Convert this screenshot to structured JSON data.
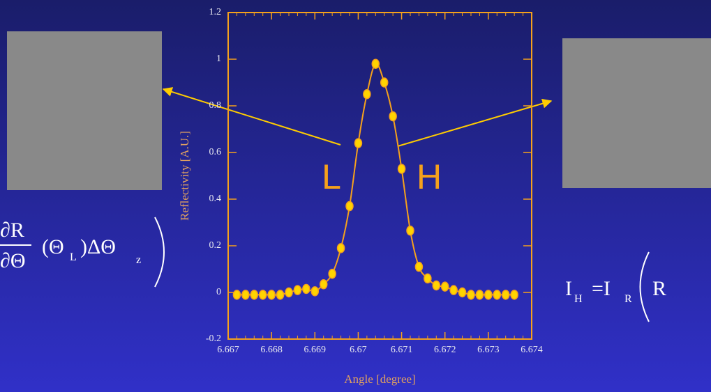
{
  "chart_data": {
    "type": "line",
    "x": [
      6.6672,
      6.6674,
      6.6676,
      6.6678,
      6.668,
      6.6682,
      6.6684,
      6.6686,
      6.6688,
      6.669,
      6.6692,
      6.6694,
      6.6696,
      6.6698,
      6.67,
      6.6702,
      6.6704,
      6.6706,
      6.6708,
      6.671,
      6.6712,
      6.6714,
      6.6716,
      6.6718,
      6.672,
      6.6722,
      6.6724,
      6.6726,
      6.6728,
      6.673,
      6.6732,
      6.6734,
      6.6736
    ],
    "series": [
      {
        "color": "#f5a11c",
        "marker_color": "#ffd400",
        "values": [
          -0.01,
          -0.01,
          -0.01,
          -0.01,
          -0.01,
          -0.01,
          0,
          0.01,
          0.015,
          0.005,
          0.035,
          0.08,
          0.19,
          0.37,
          0.64,
          0.85,
          0.98,
          0.9,
          0.755,
          0.53,
          0.265,
          0.11,
          0.06,
          0.03,
          0.025,
          0.01,
          0,
          -0.01,
          -0.01,
          -0.01,
          -0.01,
          -0.01,
          -0.01
        ]
      }
    ],
    "xlim": [
      6.667,
      6.674
    ],
    "xticks": [
      6.667,
      6.668,
      6.669,
      6.67,
      6.671,
      6.672,
      6.673,
      6.674
    ],
    "ylim": [
      -0.2,
      1.2
    ],
    "yticks": [
      -0.2,
      0,
      0.2,
      0.4,
      0.6,
      0.8,
      1,
      1.2
    ],
    "xlabel": "Angle [degree]",
    "ylabel": "Reflectivity [A.U.]",
    "annotations": [
      "L",
      "H"
    ]
  },
  "equations": {
    "left": {
      "numerator": "∂R",
      "denominator": "∂Θ",
      "paren": "(Θ",
      "sub_l": "L",
      "rest": ")ΔΘ",
      "sub_z": "z"
    },
    "right": {
      "i": "I",
      "sub_h": "H",
      "eq": "=I",
      "sub_r": "R",
      "r": "R"
    }
  }
}
